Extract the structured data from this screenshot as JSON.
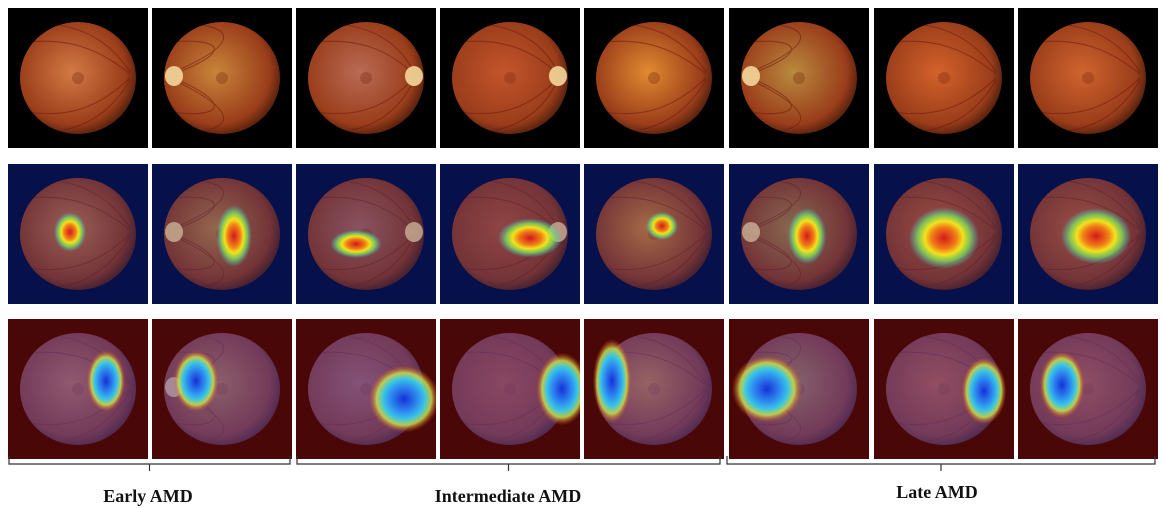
{
  "groups": [
    {
      "label": "Early AMD"
    },
    {
      "label": "Intermediate AMD"
    },
    {
      "label": "Late AMD"
    }
  ],
  "rows": [
    "fundus",
    "heatmap",
    "inverse-heatmap"
  ],
  "colors": {
    "fundus_bg": "#000000",
    "heatmap_bg": "#06104a",
    "inverse_bg": "#4a0708",
    "retina_orange": "#d2743a",
    "retina_dark": "#9a3d1a",
    "optic_disc": "#f4d79a",
    "hot_red": "#d4181c",
    "hot_yellow": "#f2e31b",
    "cool_cyan": "#37c6e6",
    "cool_blue": "#1730d8"
  }
}
